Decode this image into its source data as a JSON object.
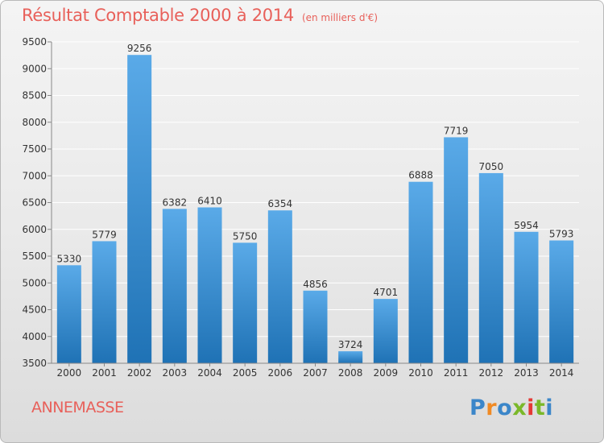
{
  "title": "Résultat Comptable 2000 à 2014",
  "subtitle": "(en milliers d'€)",
  "place": "ANNEMASSE",
  "logo": {
    "letters": [
      "P",
      "r",
      "o",
      "x",
      "i",
      "t",
      "i"
    ],
    "colors": [
      "#3b86c9",
      "#f08a24",
      "#3b86c9",
      "#7ab829",
      "#e53935",
      "#7ab829",
      "#3b86c9"
    ]
  },
  "colors": {
    "title": "#e8605a",
    "bar_top": "#5aaae8",
    "bar_bottom": "#1f72b5",
    "grid": "#ffffff",
    "axis": "#888888",
    "text": "#333333"
  },
  "chart_data": {
    "type": "bar",
    "categories": [
      "2000",
      "2001",
      "2002",
      "2003",
      "2004",
      "2005",
      "2006",
      "2007",
      "2008",
      "2009",
      "2010",
      "2011",
      "2012",
      "2013",
      "2014"
    ],
    "values": [
      5330,
      5779,
      9256,
      6382,
      6410,
      5750,
      6354,
      4856,
      3724,
      4701,
      6888,
      7719,
      7050,
      5954,
      5793
    ],
    "ylim": [
      3500,
      9500
    ],
    "yticks": [
      3500,
      4000,
      4500,
      5000,
      5500,
      6000,
      6500,
      7000,
      7500,
      8000,
      8500,
      9000,
      9500
    ],
    "grid": true,
    "data_labels": true
  }
}
